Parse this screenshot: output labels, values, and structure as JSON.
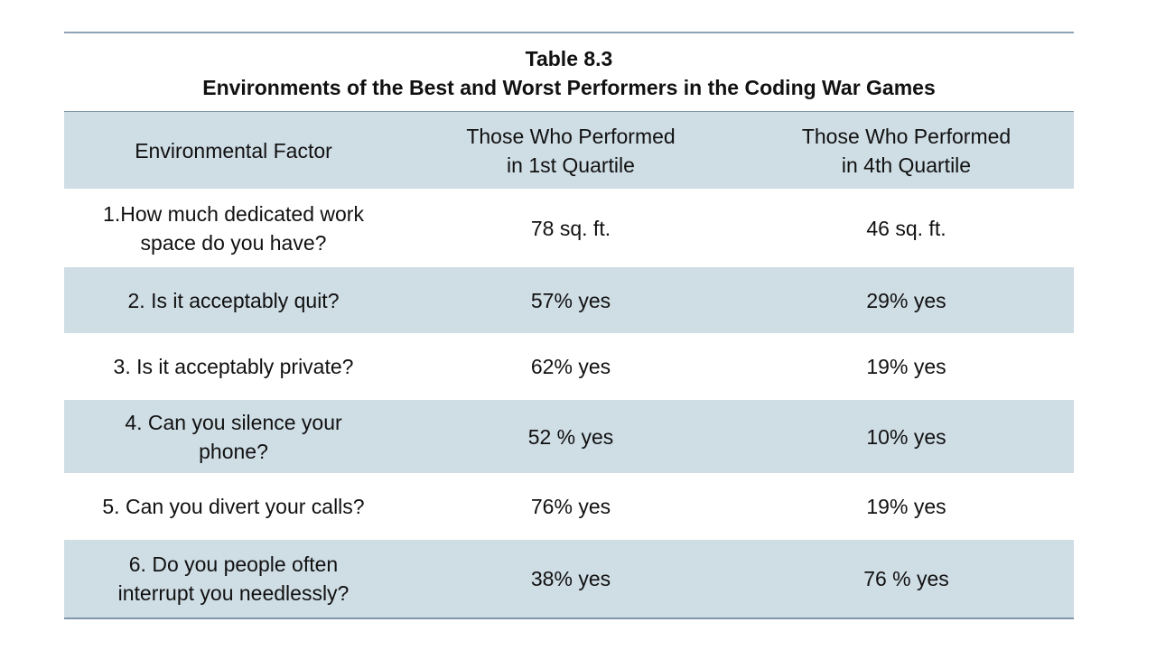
{
  "caption": {
    "number": "Table 8.3",
    "title": "Environments of the Best and Worst Performers in the Coding War Games"
  },
  "header": {
    "factor": "Environmental Factor",
    "q1_line1": "Those Who Performed",
    "q1_line2": "in 1st Quartile",
    "q4_line1": "Those Who Performed",
    "q4_line2": "in 4th Quartile"
  },
  "rows": [
    {
      "factor_line1": "1.How much dedicated work",
      "factor_line2": "space do you have?",
      "q1": "78 sq. ft.",
      "q4": "46 sq. ft."
    },
    {
      "factor_line1": "2. Is it acceptably quit?",
      "factor_line2": "",
      "q1": "57% yes",
      "q4": "29% yes"
    },
    {
      "factor_line1": "3. Is it acceptably private?",
      "factor_line2": "",
      "q1": "62% yes",
      "q4": "19% yes"
    },
    {
      "factor_line1": "4. Can you silence your",
      "factor_line2": "phone?",
      "q1": "52 % yes",
      "q4": "10% yes"
    },
    {
      "factor_line1": "5. Can you divert your calls?",
      "factor_line2": "",
      "q1": "76% yes",
      "q4": "19% yes"
    },
    {
      "factor_line1": "6. Do you people often",
      "factor_line2": "interrupt you needlessly?",
      "q1": "38% yes",
      "q4": "76 % yes"
    }
  ],
  "colors": {
    "shade": "#cfdde5",
    "rule": "#7f96a8"
  }
}
